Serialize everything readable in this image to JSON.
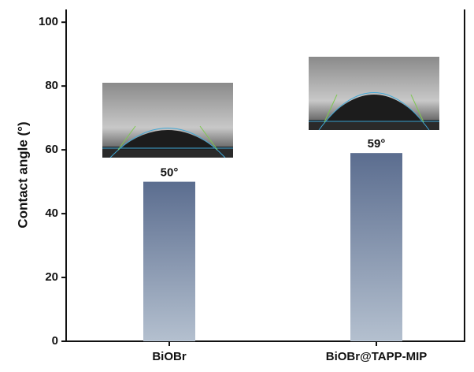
{
  "chart_data": {
    "type": "bar",
    "y_label": "Contact angle (°)",
    "categories": [
      "BiOBr",
      "BiOBr@TAPP-MIP"
    ],
    "values": [
      50,
      59
    ],
    "value_labels": [
      "50°",
      "59°"
    ],
    "gradient": [
      "#5b6d8f",
      "#b4c0cf"
    ],
    "ylim": [
      0,
      104
    ],
    "yticks": [
      0,
      20,
      40,
      60,
      80,
      100
    ]
  }
}
